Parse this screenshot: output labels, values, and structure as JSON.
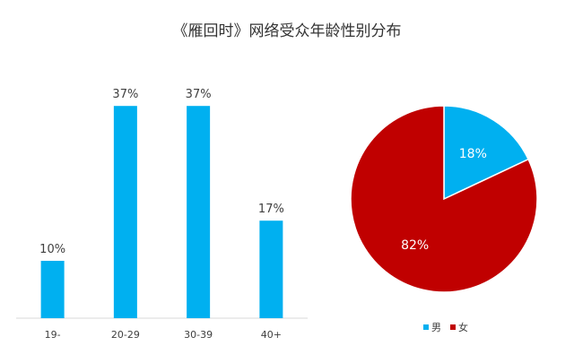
{
  "chart_title": "《雁回时》网络受众年龄性别分布",
  "chart_data": [
    {
      "type": "bar",
      "categories": [
        "19-",
        "20-29",
        "30-39",
        "40+"
      ],
      "values": [
        10,
        37,
        37,
        17
      ],
      "data_labels": [
        "10%",
        "37%",
        "37%",
        "17%"
      ],
      "ylim": [
        0,
        40
      ],
      "grid": false,
      "color": "#00B0F0"
    },
    {
      "type": "pie",
      "slices": [
        {
          "label": "男",
          "value": 18,
          "display": "18%",
          "color": "#00B0F0"
        },
        {
          "label": "女",
          "value": 82,
          "display": "82%",
          "color": "#C00000"
        }
      ],
      "legend_position": "bottom"
    }
  ]
}
